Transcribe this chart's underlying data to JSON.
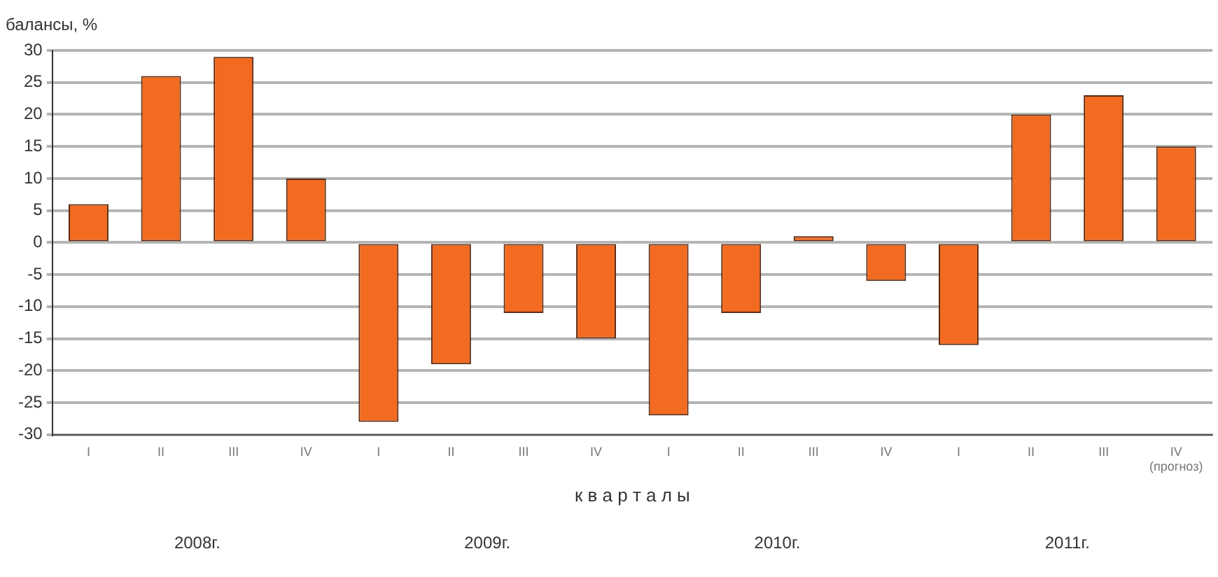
{
  "chart_data": {
    "type": "bar",
    "ylabel": "балансы, %",
    "xlabel": "к в а р т а л ы",
    "categories": [
      "I",
      "II",
      "III",
      "IV",
      "I",
      "II",
      "III",
      "IV",
      "I",
      "II",
      "III",
      "IV",
      "I",
      "II",
      "III",
      "IV (прогноз)"
    ],
    "values": [
      6,
      26,
      29,
      10,
      -28,
      -19,
      -11,
      -15,
      -27,
      -11,
      1,
      -6,
      -16,
      20,
      23,
      15
    ],
    "color": "#f26b21",
    "ylim": [
      -30,
      30
    ],
    "yticks": [
      -30,
      -25,
      -20,
      -15,
      -10,
      -5,
      0,
      5,
      10,
      15,
      20,
      25,
      30
    ],
    "grid": "y",
    "legend": false,
    "annotations": [
      "2008г.",
      "2009г.",
      "2010г.",
      "2011г."
    ]
  }
}
